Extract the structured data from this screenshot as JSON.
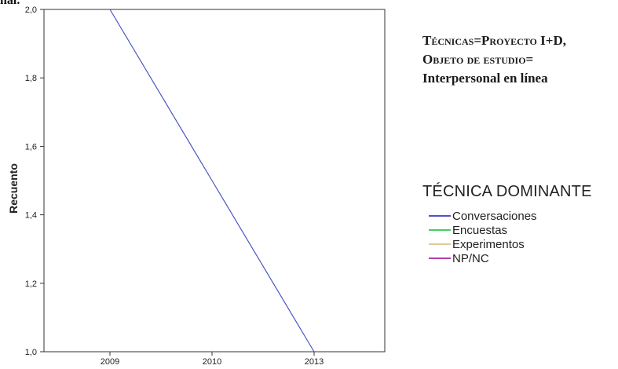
{
  "figure": {
    "cut_text": "nal.",
    "heading": {
      "line1_a": "Técnicas",
      "line1_b": "=",
      "line1_c": "Proyecto",
      "line1_d": " I+D,",
      "line2_a": "Objeto de estudio",
      "line2_b": "=",
      "line3": "Interpersonal en línea"
    }
  },
  "chart_data": {
    "type": "line",
    "categories": [
      "2009",
      "2010",
      "2013"
    ],
    "ylabel": "Recuento",
    "ylim": [
      1.0,
      2.0
    ],
    "yticks": [
      1.0,
      1.2,
      1.4,
      1.6,
      1.8,
      2.0
    ],
    "ytick_labels": [
      "1,0",
      "1,2",
      "1,4",
      "1,6",
      "1,8",
      "2,0"
    ],
    "grid": false,
    "legend": {
      "title": "TÉCNICA DOMINANTE",
      "placement": "right",
      "entries": [
        {
          "name": "Conversaciones",
          "color": "#4a55c8"
        },
        {
          "name": "Encuestas",
          "color": "#44cc66"
        },
        {
          "name": "Experimentos",
          "color": "#e2c89a"
        },
        {
          "name": "NP/NC",
          "color": "#b43ab4"
        }
      ]
    },
    "series": [
      {
        "name": "Conversaciones",
        "color": "#4a55c8",
        "values": [
          2.0,
          1.5,
          1.0
        ]
      }
    ]
  }
}
